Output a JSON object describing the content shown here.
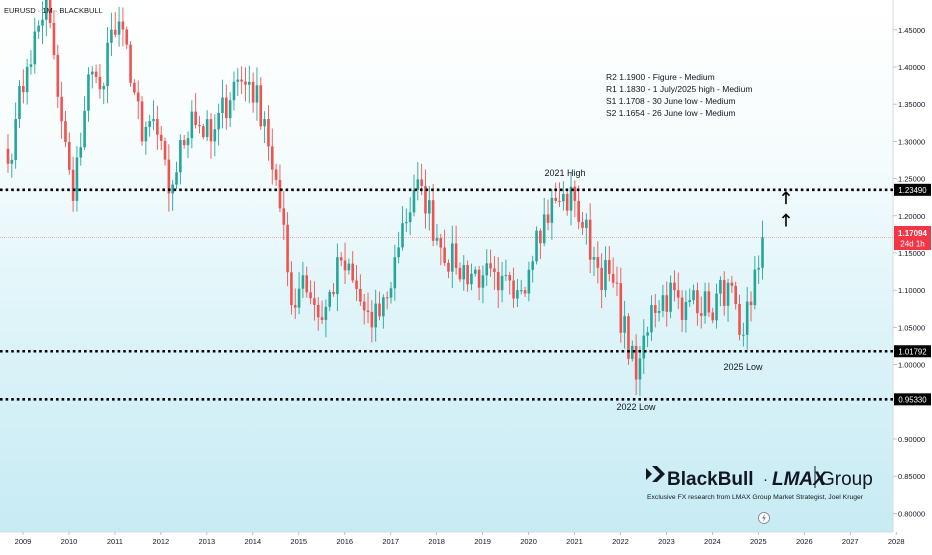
{
  "header": {
    "title": "EURUSD · 1M · BLACKBULL"
  },
  "price_tag": {
    "price": "1.17094",
    "countdown": "24d 1h"
  },
  "levels_info": [
    "R2 1.1900 - Figure - Medium",
    "R1 1.1830 - 1 July/2025 high - Medium",
    "S1 1.1708 - 30 June low - Medium",
    "S2 1.1654 - 26 June low - Medium"
  ],
  "annotations": {
    "high_2021": "2021 High",
    "low_2022": "2022 Low",
    "low_2025": "2025 Low"
  },
  "branding": {
    "logo_blackbull": "BlackBull",
    "logo_lmax": "LMAX",
    "logo_group": "Group",
    "tagline": "Exclusive FX research from LMAX Group Market Strategist, Joel Kruger"
  },
  "colors": {
    "up": "#26a69a",
    "down": "#ef5350",
    "accent": "#f23645",
    "background_top": "#ffffff",
    "background_bottom": "#c9ecf5"
  },
  "chart_data": {
    "type": "candlestick",
    "symbol": "EURUSD",
    "interval": "1M",
    "ylim": [
      0.775,
      1.49
    ],
    "y_ticks": [
      0.8,
      0.85,
      0.9,
      0.95,
      1.0,
      1.05,
      1.1,
      1.15,
      1.2,
      1.25,
      1.3,
      1.35,
      1.4,
      1.45
    ],
    "y_tick_labels": [
      "0.80000",
      "0.85000",
      "0.90000",
      "0.95000",
      "1.00000",
      "1.05000",
      "1.10000",
      "1.15000",
      "1.20000",
      "1.25000",
      "1.30000",
      "1.35000",
      "1.40000",
      "1.45000"
    ],
    "x_start": "2009-01",
    "x_labels": [
      "2009",
      "2010",
      "2011",
      "2012",
      "2013",
      "2014",
      "2015",
      "2016",
      "2017",
      "2018",
      "2019",
      "2020",
      "2021",
      "2022",
      "2023",
      "2024",
      "2025",
      "2026",
      "2027",
      "2028"
    ],
    "levels": [
      1.2349,
      1.01792,
      0.9533
    ],
    "level_labels": [
      "1.23490",
      "1.01792",
      "0.95330"
    ],
    "last_price": 1.17094,
    "arrows_up": [
      1.225,
      1.195
    ],
    "anchors": [
      [
        "2009-01",
        1.27
      ],
      [
        "2009-03",
        1.33
      ],
      [
        "2009-06",
        1.4
      ],
      [
        "2009-11",
        1.49
      ],
      [
        "2010-02",
        1.36
      ],
      [
        "2010-06",
        1.22
      ],
      [
        "2010-10",
        1.39
      ],
      [
        "2011-01",
        1.37
      ],
      [
        "2011-04",
        1.45
      ],
      [
        "2011-08",
        1.43
      ],
      [
        "2011-12",
        1.3
      ],
      [
        "2012-03",
        1.33
      ],
      [
        "2012-07",
        1.23
      ],
      [
        "2013-01",
        1.34
      ],
      [
        "2013-06",
        1.3
      ],
      [
        "2013-12",
        1.38
      ],
      [
        "2014-04",
        1.38
      ],
      [
        "2014-08",
        1.33
      ],
      [
        "2014-12",
        1.21
      ],
      [
        "2015-03",
        1.08
      ],
      [
        "2015-06",
        1.12
      ],
      [
        "2015-11",
        1.06
      ],
      [
        "2016-04",
        1.14
      ],
      [
        "2016-12",
        1.05
      ],
      [
        "2017-04",
        1.09
      ],
      [
        "2017-08",
        1.19
      ],
      [
        "2018-01",
        1.24
      ],
      [
        "2018-05",
        1.17
      ],
      [
        "2018-10",
        1.13
      ],
      [
        "2019-05",
        1.12
      ],
      [
        "2019-09",
        1.1
      ],
      [
        "2020-02",
        1.1
      ],
      [
        "2020-03",
        1.1
      ],
      [
        "2020-07",
        1.18
      ],
      [
        "2020-12",
        1.22
      ],
      [
        "2021-05",
        1.22
      ],
      [
        "2021-11",
        1.13
      ],
      [
        "2022-03",
        1.11
      ],
      [
        "2022-09",
        0.98
      ],
      [
        "2023-01",
        1.08
      ],
      [
        "2023-07",
        1.1
      ],
      [
        "2023-09",
        1.06
      ],
      [
        "2023-12",
        1.1
      ],
      [
        "2024-04",
        1.07
      ],
      [
        "2024-09",
        1.11
      ],
      [
        "2024-12",
        1.04
      ],
      [
        "2025-01",
        1.04
      ],
      [
        "2025-03",
        1.08
      ],
      [
        "2025-05",
        1.13
      ],
      [
        "2025-06",
        1.17094
      ]
    ]
  }
}
